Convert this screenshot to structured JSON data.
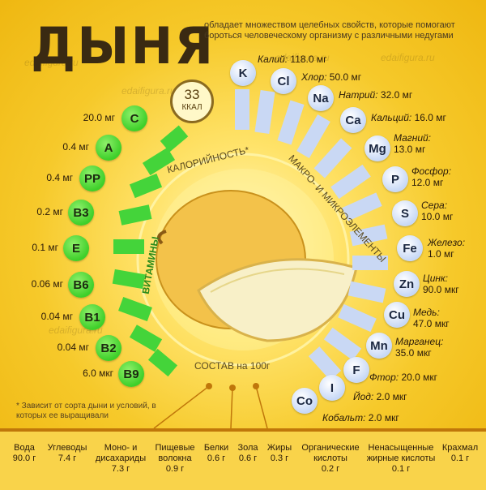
{
  "header": {
    "title": "ДЫНЯ",
    "subtitle": "обладает множеством целебных свойств, которые помогают бороться человеческому организму с различными недугами"
  },
  "calories": {
    "value": "33",
    "unit": "ККАЛ",
    "label": "КАЛОРИЙНОСТЬ*"
  },
  "arcs": {
    "vitamins": "ВИТАМИНЫ",
    "minerals": "МАКРО- И МИКРОЭЛЕМЕНТЫ",
    "composition": "СОСТАВ на 100г"
  },
  "watermark": "edaifigura.ru",
  "vitamins": [
    {
      "symbol": "C",
      "value": "20.0 мг"
    },
    {
      "symbol": "A",
      "value": "0.4 мг"
    },
    {
      "symbol": "PP",
      "value": "0.4 мг"
    },
    {
      "symbol": "B3",
      "value": "0.2 мг"
    },
    {
      "symbol": "E",
      "value": "0.1 мг"
    },
    {
      "symbol": "B6",
      "value": "0.06 мг"
    },
    {
      "symbol": "B1",
      "value": "0.04 мг"
    },
    {
      "symbol": "B2",
      "value": "0.04 мг"
    },
    {
      "symbol": "B9",
      "value": "6.0 мкг"
    }
  ],
  "minerals": [
    {
      "symbol": "K",
      "name": "Калий:",
      "value": "118.0 мг"
    },
    {
      "symbol": "Cl",
      "name": "Хлор:",
      "value": "50.0 мг"
    },
    {
      "symbol": "Na",
      "name": "Натрий:",
      "value": "32.0 мг"
    },
    {
      "symbol": "Ca",
      "name": "Кальций:",
      "value": "16.0 мг"
    },
    {
      "symbol": "Mg",
      "name": "Магний:",
      "value": "13.0 мг"
    },
    {
      "symbol": "P",
      "name": "Фосфор:",
      "value": "12.0 мг"
    },
    {
      "symbol": "S",
      "name": "Сера:",
      "value": "10.0 мг"
    },
    {
      "symbol": "Fe",
      "name": "Железо:",
      "value": "1.0 мг"
    },
    {
      "symbol": "Zn",
      "name": "Цинк:",
      "value": "90.0 мкг"
    },
    {
      "symbol": "Cu",
      "name": "Медь:",
      "value": "47.0 мкг"
    },
    {
      "symbol": "Mn",
      "name": "Марганец:",
      "value": "35.0 мкг"
    },
    {
      "symbol": "F",
      "name": "Фтор:",
      "value": "20.0 мкг"
    },
    {
      "symbol": "I",
      "name": "Йод:",
      "value": "2.0 мкг"
    },
    {
      "symbol": "Co",
      "name": "Кобальт:",
      "value": "2.0 мкг"
    }
  ],
  "note": "* Зависит от сорта дыни и условий, в которых ее выращивали",
  "composition": [
    {
      "name": "Вода",
      "value": "90.0 г"
    },
    {
      "name": "Углеводы",
      "value": "7.4 г"
    },
    {
      "name": "Моно- и дисахариды",
      "value": "7.3 г"
    },
    {
      "name": "Пищевые волокна",
      "value": "0.9 г"
    },
    {
      "name": "Белки",
      "value": "0.6 г"
    },
    {
      "name": "Зола",
      "value": "0.6 г"
    },
    {
      "name": "Жиры",
      "value": "0.3 г"
    },
    {
      "name": "Органические кислоты",
      "value": "0.2 г"
    },
    {
      "name": "Ненасыщенные жирные кислоты",
      "value": "0.1 г"
    },
    {
      "name": "Крахмал",
      "value": "0.1 г"
    }
  ],
  "colors": {
    "vitamin": "#44d43a",
    "mineral": "#c9d8f4",
    "background": "#f4c21a"
  }
}
